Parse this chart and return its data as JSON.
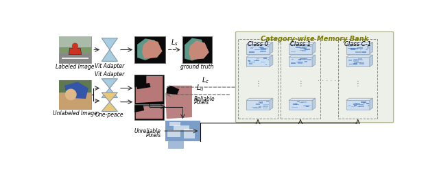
{
  "bg_color": "#ffffff",
  "memory_bank_bg": "#edf0e8",
  "memory_bank_title": "Category-wise Memory Bank",
  "memory_bank_title_color": "#7a7a00",
  "class_labels": [
    "Class 0",
    "Class 1",
    "Class C-1"
  ],
  "top_labels": [
    "Labeled Image",
    "Vit Adapter",
    "ground truth"
  ],
  "bottom_labels": [
    "Unlabeled Image",
    "Vit Adapter",
    "One-peace"
  ],
  "vit_color": "#a8cce0",
  "one_peace_color": "#e8c878",
  "seg_black": "#0a0a0a",
  "seg_brown": "#b87878",
  "reliable_brown": "#bb8080",
  "unreliable_blue": "#7a9ec8",
  "plate_color": "#ccddf0",
  "plate_edge": "#9aaabb",
  "arrow_color": "#333333",
  "dashed_color": "#666666"
}
